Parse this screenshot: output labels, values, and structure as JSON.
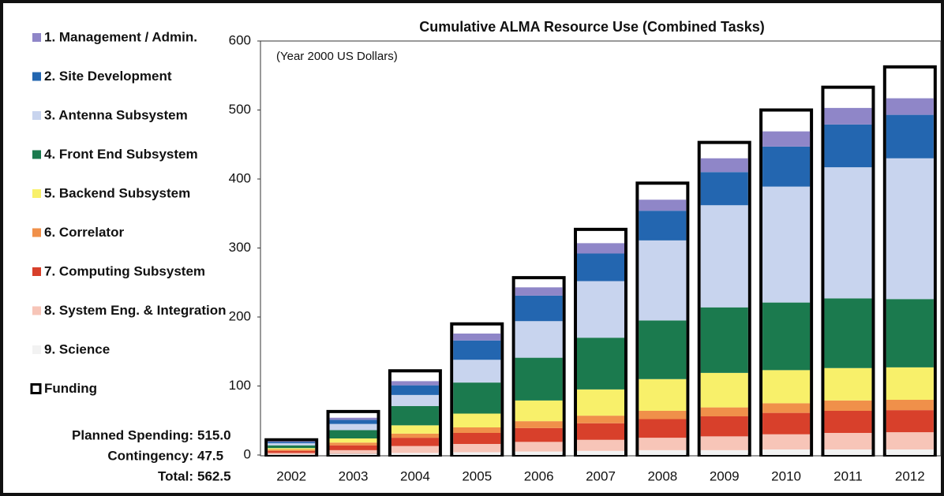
{
  "chart_data": {
    "type": "bar",
    "stacked": true,
    "title": "Cumulative ALMA Resource Use (Combined Tasks)",
    "subtitle": "(Year 2000 US Dollars)",
    "categories": [
      "2002",
      "2003",
      "2004",
      "2005",
      "2006",
      "2007",
      "2008",
      "2009",
      "2010",
      "2011",
      "2012"
    ],
    "ylim": [
      0,
      600
    ],
    "yticks": [
      0,
      100,
      200,
      300,
      400,
      500,
      600
    ],
    "series": [
      {
        "name": "9. Science",
        "color": "#f2f2f2",
        "values": [
          1,
          2,
          3,
          4,
          5,
          6,
          7,
          7,
          8,
          8,
          8
        ]
      },
      {
        "name": "8. System Eng. & Integration",
        "color": "#f7c5b8",
        "values": [
          2,
          5,
          10,
          12,
          14,
          16,
          18,
          20,
          22,
          24,
          25
        ]
      },
      {
        "name": "7. Computing Subsystem",
        "color": "#d8402b",
        "values": [
          3,
          7,
          12,
          16,
          20,
          24,
          27,
          29,
          31,
          32,
          32
        ]
      },
      {
        "name": "6.  Correlator",
        "color": "#f0904a",
        "values": [
          2,
          4,
          6,
          8,
          10,
          11,
          12,
          13,
          14,
          15,
          15
        ]
      },
      {
        "name": "5. Backend Subsystem",
        "color": "#f8f06a",
        "values": [
          2,
          6,
          12,
          20,
          30,
          38,
          46,
          50,
          48,
          47,
          47
        ]
      },
      {
        "name": "4. Front End Subsystem",
        "color": "#1b7a4e",
        "values": [
          4,
          12,
          28,
          45,
          62,
          75,
          85,
          95,
          98,
          101,
          99
        ]
      },
      {
        "name": "3. Antenna Subsystem",
        "color": "#c8d4ee",
        "values": [
          3,
          9,
          16,
          33,
          53,
          82,
          116,
          148,
          168,
          190,
          204
        ]
      },
      {
        "name": "2. Site Development",
        "color": "#2366b0",
        "values": [
          2,
          6,
          14,
          28,
          37,
          40,
          43,
          48,
          58,
          62,
          63
        ]
      },
      {
        "name": "1. Management / Admin.",
        "color": "#8f86c8",
        "values": [
          1,
          3,
          6,
          10,
          12,
          15,
          16,
          20,
          22,
          24,
          24
        ]
      }
    ],
    "funding": {
      "name": "Funding",
      "values": [
        22,
        63,
        122,
        190,
        257,
        327,
        394,
        453,
        500,
        533,
        562.5
      ]
    },
    "summary": [
      {
        "label": "Planned Spending:",
        "value": "515.0"
      },
      {
        "label": "Contingency:",
        "value": "47.5"
      },
      {
        "label": "Total:",
        "value": "562.5"
      }
    ]
  }
}
